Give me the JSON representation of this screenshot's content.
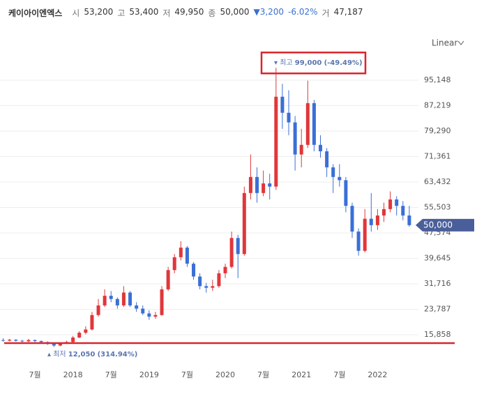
{
  "header": {
    "name": "케이아이엔엑스",
    "items": [
      {
        "key": "시",
        "value": "53,200"
      },
      {
        "key": "고",
        "value": "53,400"
      },
      {
        "key": "저",
        "value": "49,950"
      },
      {
        "key": "종",
        "value": "50,000"
      }
    ],
    "change": "3,200",
    "change_pct": "-6.02%",
    "volume_key": "거",
    "volume": "47,187"
  },
  "scale_menu": "Linear",
  "chart_data": {
    "type": "candlestick",
    "up_color": "#e0373a",
    "down_color": "#3b6fd6",
    "grid": true,
    "ylim": [
      10000,
      110000
    ],
    "xlim": [
      -0.5,
      65
    ],
    "yticks": [
      {
        "value": 15858,
        "label": "15,858"
      },
      {
        "value": 23787,
        "label": "23,787"
      },
      {
        "value": 31716,
        "label": "31,716"
      },
      {
        "value": 39645,
        "label": "39,645"
      },
      {
        "value": 47574,
        "label": "47,574"
      },
      {
        "value": 55503,
        "label": "55,503"
      },
      {
        "value": 63432,
        "label": "63,432"
      },
      {
        "value": 71361,
        "label": "71,361"
      },
      {
        "value": 79290,
        "label": "79,290"
      },
      {
        "value": 87219,
        "label": "87,219"
      },
      {
        "value": 95148,
        "label": "95,148"
      }
    ],
    "xticks": [
      {
        "value": 5,
        "label": "7월"
      },
      {
        "value": 11,
        "label": "2018"
      },
      {
        "value": 17,
        "label": "7월"
      },
      {
        "value": 23,
        "label": "2019"
      },
      {
        "value": 29,
        "label": "7월"
      },
      {
        "value": 35,
        "label": "2020"
      },
      {
        "value": 41,
        "label": "7월"
      },
      {
        "value": 47,
        "label": "2021"
      },
      {
        "value": 53,
        "label": "7월"
      },
      {
        "value": 59,
        "label": "2022"
      }
    ],
    "candles": [
      [
        14200,
        14800,
        13700,
        14000
      ],
      [
        14000,
        14600,
        13800,
        14300
      ],
      [
        14300,
        14500,
        13700,
        14000
      ],
      [
        14000,
        14300,
        13500,
        13800
      ],
      [
        13800,
        14600,
        13600,
        14200
      ],
      [
        14200,
        14400,
        13500,
        13900
      ],
      [
        13900,
        14100,
        13300,
        13600
      ],
      [
        13600,
        13800,
        12700,
        13000
      ],
      [
        13000,
        13200,
        12050,
        12500
      ],
      [
        12500,
        13500,
        12300,
        13200
      ],
      [
        13200,
        14000,
        13000,
        13600
      ],
      [
        13600,
        15500,
        13400,
        15000
      ],
      [
        15000,
        17000,
        14800,
        16500
      ],
      [
        16500,
        18500,
        16000,
        17500
      ],
      [
        17500,
        23000,
        17200,
        22000
      ],
      [
        22000,
        27000,
        21500,
        25000
      ],
      [
        25000,
        30000,
        24500,
        28000
      ],
      [
        28000,
        29500,
        26000,
        27000
      ],
      [
        27000,
        27500,
        24000,
        25000
      ],
      [
        25000,
        31000,
        24500,
        29000
      ],
      [
        29000,
        29500,
        24500,
        25000
      ],
      [
        25000,
        26000,
        23000,
        24000
      ],
      [
        24000,
        25000,
        22000,
        22500
      ],
      [
        22500,
        23500,
        20500,
        21500
      ],
      [
        21500,
        23000,
        20800,
        22000
      ],
      [
        22000,
        31000,
        21800,
        30000
      ],
      [
        30000,
        37000,
        29500,
        36000
      ],
      [
        36000,
        41000,
        35000,
        40000
      ],
      [
        40000,
        45000,
        39000,
        43000
      ],
      [
        43000,
        43500,
        37000,
        38000
      ],
      [
        38000,
        38500,
        33000,
        34000
      ],
      [
        34000,
        35000,
        30000,
        31000
      ],
      [
        31000,
        32000,
        29000,
        30500
      ],
      [
        30500,
        33000,
        29500,
        31000
      ],
      [
        31000,
        36000,
        30500,
        35000
      ],
      [
        35000,
        38000,
        33500,
        37000
      ],
      [
        37000,
        48000,
        36500,
        46000
      ],
      [
        46000,
        47000,
        33500,
        41000
      ],
      [
        41000,
        62000,
        40500,
        60000
      ],
      [
        60000,
        72000,
        58000,
        65000
      ],
      [
        65000,
        68000,
        57000,
        60000
      ],
      [
        60000,
        67000,
        59000,
        63000
      ],
      [
        63000,
        66000,
        58000,
        62000
      ],
      [
        62000,
        99000,
        61000,
        90000
      ],
      [
        90000,
        94000,
        80000,
        85000
      ],
      [
        85000,
        92000,
        78000,
        82000
      ],
      [
        82000,
        84000,
        67000,
        72000
      ],
      [
        72000,
        80000,
        68000,
        75000
      ],
      [
        75000,
        95000,
        74000,
        88000
      ],
      [
        88000,
        89000,
        73000,
        75000
      ],
      [
        75000,
        78000,
        71000,
        73000
      ],
      [
        73000,
        74000,
        65000,
        68000
      ],
      [
        68000,
        69000,
        60000,
        65000
      ],
      [
        65000,
        69000,
        62000,
        64000
      ],
      [
        64000,
        65000,
        54000,
        56000
      ],
      [
        56000,
        57000,
        46000,
        48000
      ],
      [
        48000,
        49000,
        40500,
        42000
      ],
      [
        42000,
        55000,
        41500,
        52000
      ],
      [
        52000,
        60000,
        48000,
        50000
      ],
      [
        50000,
        55000,
        48500,
        53000
      ],
      [
        53000,
        57000,
        51000,
        55000
      ],
      [
        55000,
        60500,
        54000,
        58000
      ],
      [
        58000,
        59000,
        53000,
        56000
      ],
      [
        56000,
        57500,
        51500,
        53000
      ],
      [
        53000,
        56000,
        49500,
        50000
      ]
    ],
    "current": {
      "value": 50000,
      "label": "50,000"
    },
    "high_note": {
      "key": "최고",
      "value": {
        "value": 99000,
        "label": "99,000"
      },
      "change": "(-49.49%)"
    },
    "low_note": {
      "key": "최저",
      "value": {
        "value": 12050,
        "label": "12,050"
      },
      "change": "(314.94%)"
    }
  }
}
